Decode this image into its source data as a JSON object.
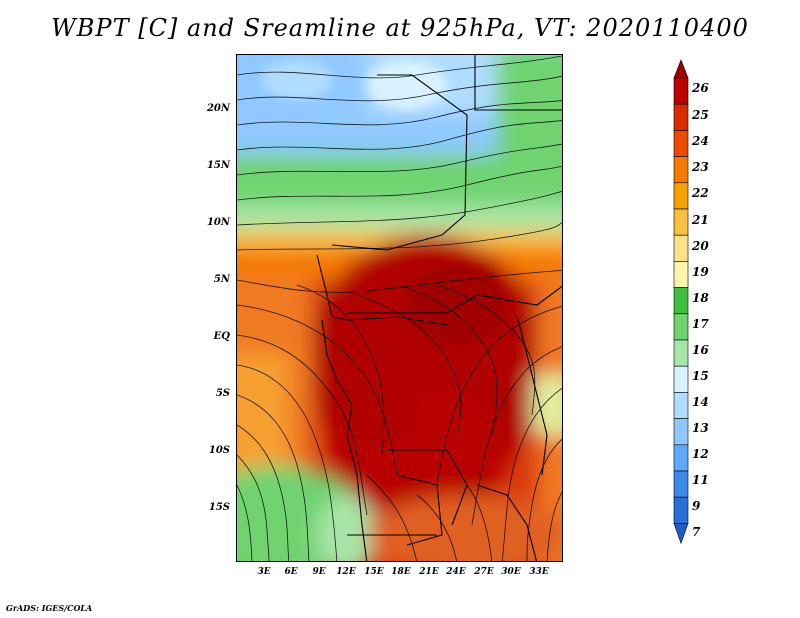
{
  "title": "WBPT [C] and Sreamline at 925hPa, VT: 2020110400",
  "footer": "GrADS: IGES/COLA",
  "map": {
    "lat_ticks": [
      "20N",
      "15N",
      "10N",
      "5N",
      "EQ",
      "5S",
      "10S",
      "15S"
    ],
    "lon_ticks": [
      "3E",
      "6E",
      "9E",
      "12E",
      "15E",
      "18E",
      "21E",
      "24E",
      "27E",
      "30E",
      "33E"
    ],
    "variable": "wet-bulb potential temperature",
    "units": "C",
    "overlay": "streamlines",
    "level": "925hPa",
    "valid_time": "2020110400"
  },
  "colorbar": {
    "labels": [
      "26",
      "25",
      "24",
      "23",
      "22",
      "21",
      "20",
      "19",
      "18",
      "17",
      "16",
      "15",
      "14",
      "13",
      "12",
      "11",
      "9",
      "7"
    ],
    "colors": [
      "#a00000",
      "#c00000",
      "#d92a00",
      "#f04a00",
      "#f57a00",
      "#f7a000",
      "#f8c040",
      "#fae28a",
      "#fff3b0",
      "#3fbf3f",
      "#6fd36f",
      "#a8e6a8",
      "#d8f2ff",
      "#b0dcff",
      "#8ec8ff",
      "#5fa8ff",
      "#3d8ae8",
      "#2a6fd6",
      "#1e5fcc"
    ]
  }
}
